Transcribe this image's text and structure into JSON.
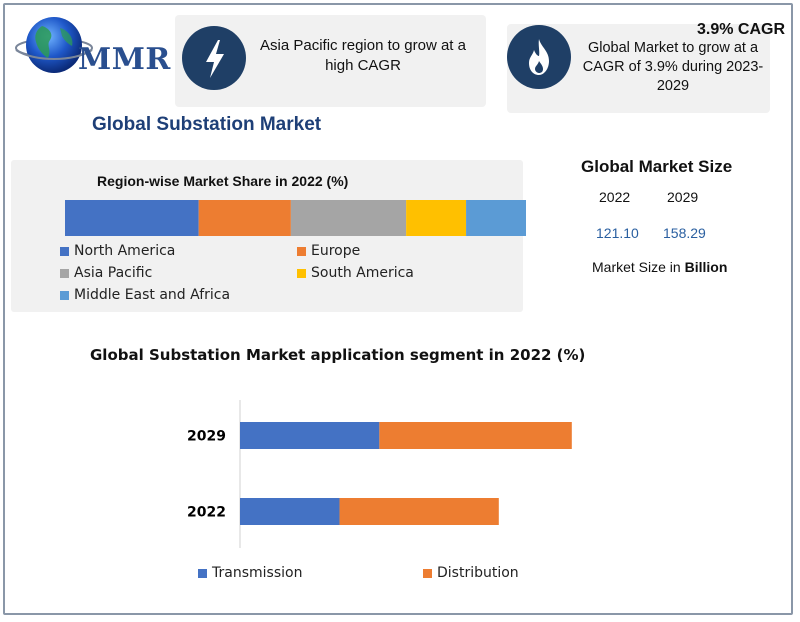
{
  "logo": {
    "text": "MMR"
  },
  "card_left": {
    "text": "Asia Pacific region to grow at a high CAGR",
    "icon": "lightning-icon"
  },
  "card_right": {
    "title": "3.9% CAGR",
    "text": "Global Market to grow at a CAGR of 3.9% during 2023-2029",
    "icon": "flame-icon"
  },
  "main_title": "Global Substation Market",
  "market_size": {
    "title": "Global Market Size",
    "years": [
      "2022",
      "2029"
    ],
    "values": [
      "121.10",
      "158.29"
    ],
    "unit_prefix": "Market Size in ",
    "unit_bold": "Billion"
  },
  "colors": {
    "blue": "#4472c4",
    "orange": "#ed7d31",
    "gray": "#a5a5a5",
    "yellow": "#ffc000",
    "lightblue": "#5b9bd5",
    "navy": "#1f3f66",
    "title": "#1e3f77"
  },
  "chart_data": [
    {
      "type": "bar",
      "orientation": "horizontal-stacked",
      "title": "Region-wise Market Share in 2022 (%)",
      "categories": [
        "2022"
      ],
      "series": [
        {
          "name": "North America",
          "values": [
            29
          ],
          "color": "#4472c4"
        },
        {
          "name": "Europe",
          "values": [
            20
          ],
          "color": "#ed7d31"
        },
        {
          "name": "Asia Pacific",
          "values": [
            25
          ],
          "color": "#a5a5a5"
        },
        {
          "name": "South America",
          "values": [
            13
          ],
          "color": "#ffc000"
        },
        {
          "name": "Middle East and Africa",
          "values": [
            13
          ],
          "color": "#5b9bd5"
        }
      ],
      "legend": "bottom"
    },
    {
      "type": "bar",
      "orientation": "horizontal-stacked",
      "title": "Global Substation Market application segment in 2022 (%)",
      "categories": [
        "2029",
        "2022"
      ],
      "series": [
        {
          "name": "Transmission",
          "values": [
            42,
            30
          ],
          "color": "#4472c4"
        },
        {
          "name": "Distribution",
          "values": [
            58,
            48
          ],
          "color": "#ed7d31"
        }
      ],
      "xlim": [
        0,
        100
      ],
      "legend": "bottom"
    }
  ]
}
